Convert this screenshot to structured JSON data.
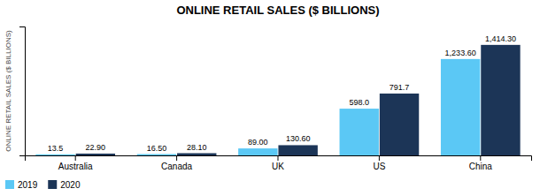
{
  "chart_data": {
    "type": "bar",
    "title": "ONLINE RETAIL SALES ($ BILLIONS)",
    "ylabel": "ONLINE RETAIL SALES ($ BILLIONS)",
    "categories": [
      "Australia",
      "Canada",
      "UK",
      "US",
      "China"
    ],
    "series": [
      {
        "name": "2019",
        "color": "#5BC8F5",
        "values": [
          13.5,
          16.5,
          89.0,
          598.0,
          1233.6
        ],
        "value_labels": [
          "13.5",
          "16.50",
          "89.00",
          "598.0",
          "1,233.60"
        ]
      },
      {
        "name": "2020",
        "color": "#1C3557",
        "values": [
          22.9,
          28.1,
          130.6,
          791.7,
          1414.3
        ],
        "value_labels": [
          "22.90",
          "28.10",
          "130.60",
          "791.7",
          "1,414.30"
        ]
      }
    ],
    "ylim": [
      0,
      1650
    ],
    "grid": false,
    "legend": "lower left",
    "data_labels": true,
    "tick_labels": "x"
  }
}
